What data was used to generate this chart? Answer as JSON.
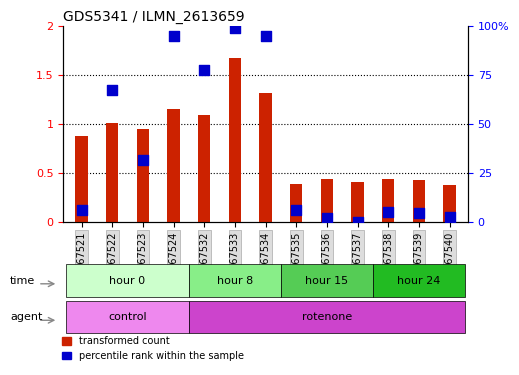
{
  "title": "GDS5341 / ILMN_2613659",
  "samples": [
    "GSM567521",
    "GSM567522",
    "GSM567523",
    "GSM567524",
    "GSM567532",
    "GSM567533",
    "GSM567534",
    "GSM567535",
    "GSM567536",
    "GSM567537",
    "GSM567538",
    "GSM567539",
    "GSM567540"
  ],
  "red_values": [
    0.88,
    1.01,
    0.95,
    1.15,
    1.09,
    1.67,
    1.32,
    0.39,
    0.44,
    0.41,
    0.44,
    0.43,
    0.38
  ],
  "blue_values": [
    6.0,
    67.5,
    31.5,
    95.0,
    77.5,
    99.0,
    95.0,
    6.0,
    2.0,
    0.0,
    5.0,
    4.5,
    2.5
  ],
  "ylim_left": [
    0,
    2
  ],
  "ylim_right": [
    0,
    100
  ],
  "yticks_left": [
    0,
    0.5,
    1.0,
    1.5,
    2.0
  ],
  "ytick_labels_left": [
    "0",
    "0.5",
    "1",
    "1.5",
    "2"
  ],
  "yticks_right": [
    0,
    25,
    50,
    75,
    100
  ],
  "ytick_labels_right": [
    "0",
    "25",
    "50",
    "75",
    "100%"
  ],
  "time_groups": [
    {
      "label": "hour 0",
      "start": 0,
      "end": 4,
      "color": "#ccffcc"
    },
    {
      "label": "hour 8",
      "start": 4,
      "end": 7,
      "color": "#88ee88"
    },
    {
      "label": "hour 15",
      "start": 7,
      "end": 10,
      "color": "#55cc55"
    },
    {
      "label": "hour 24",
      "start": 10,
      "end": 13,
      "color": "#22bb22"
    }
  ],
  "agent_groups": [
    {
      "label": "control",
      "start": 0,
      "end": 4,
      "color": "#ee88ee"
    },
    {
      "label": "rotenone",
      "start": 4,
      "end": 13,
      "color": "#cc44cc"
    }
  ],
  "bar_width": 0.4,
  "blue_marker_size": 55,
  "red_color": "#cc2200",
  "blue_color": "#0000cc",
  "tick_label_fontsize": 7,
  "title_fontsize": 10
}
